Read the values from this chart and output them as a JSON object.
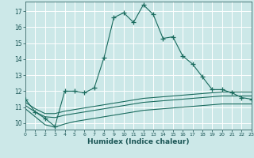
{
  "title": "",
  "xlabel": "Humidex (Indice chaleur)",
  "bg_color": "#cce8e8",
  "grid_color": "#ffffff",
  "line_color": "#1a6b5e",
  "x_main": [
    0,
    1,
    2,
    3,
    4,
    5,
    6,
    7,
    8,
    9,
    10,
    11,
    12,
    13,
    14,
    15,
    16,
    17,
    18,
    19,
    20,
    21,
    22,
    23
  ],
  "y_main": [
    11.5,
    10.7,
    10.3,
    9.8,
    12.0,
    12.0,
    11.9,
    12.2,
    14.1,
    16.6,
    16.9,
    16.3,
    17.4,
    16.8,
    15.3,
    15.4,
    14.2,
    13.7,
    12.9,
    12.1,
    12.1,
    11.9,
    11.6,
    11.5
  ],
  "x_flat": [
    0,
    1,
    2,
    3,
    4,
    5,
    6,
    7,
    8,
    9,
    10,
    11,
    12,
    13,
    14,
    15,
    16,
    17,
    18,
    19,
    20,
    21,
    22,
    23
  ],
  "y_line2": [
    11.3,
    10.9,
    10.6,
    10.6,
    10.75,
    10.85,
    10.95,
    11.05,
    11.15,
    11.25,
    11.35,
    11.45,
    11.55,
    11.6,
    11.65,
    11.7,
    11.75,
    11.8,
    11.85,
    11.9,
    11.95,
    11.95,
    11.95,
    11.95
  ],
  "y_line3": [
    11.1,
    10.7,
    10.4,
    10.35,
    10.5,
    10.6,
    10.7,
    10.8,
    10.9,
    11.0,
    11.1,
    11.2,
    11.3,
    11.35,
    11.4,
    11.45,
    11.5,
    11.55,
    11.6,
    11.65,
    11.7,
    11.7,
    11.7,
    11.7
  ],
  "y_line4": [
    10.9,
    10.4,
    9.9,
    9.75,
    9.95,
    10.1,
    10.2,
    10.3,
    10.4,
    10.5,
    10.6,
    10.7,
    10.8,
    10.85,
    10.9,
    10.95,
    11.0,
    11.05,
    11.1,
    11.15,
    11.2,
    11.2,
    11.2,
    11.2
  ],
  "ylim": [
    9.6,
    17.6
  ],
  "xlim": [
    0,
    23
  ],
  "yticks": [
    10,
    11,
    12,
    13,
    14,
    15,
    16,
    17
  ],
  "xticks": [
    0,
    1,
    2,
    3,
    4,
    5,
    6,
    7,
    8,
    9,
    10,
    11,
    12,
    13,
    14,
    15,
    16,
    17,
    18,
    19,
    20,
    21,
    22,
    23
  ]
}
